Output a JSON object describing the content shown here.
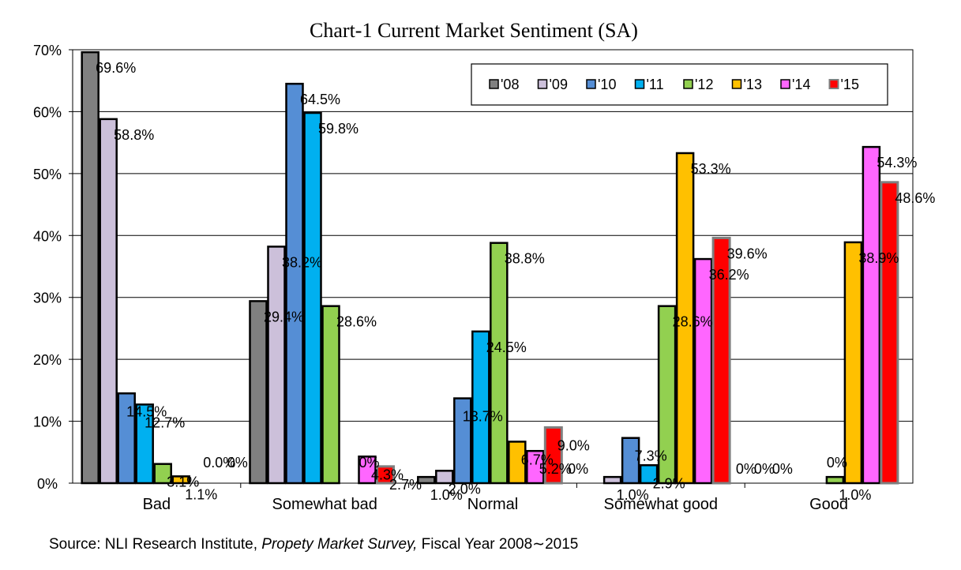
{
  "chart_data": {
    "type": "bar",
    "title": "Chart-1 Current Market Sentiment (SA)",
    "xlabel": "",
    "ylabel": "",
    "ylim": [
      0,
      70
    ],
    "yticks": [
      "0%",
      "10%",
      "20%",
      "30%",
      "40%",
      "50%",
      "60%",
      "70%"
    ],
    "grid": true,
    "legend_position": "top-right",
    "categories": [
      "Bad",
      "Somewhat bad",
      "Normal",
      "Somewhat good",
      "Good"
    ],
    "series": [
      {
        "name": "'08",
        "color": "#808080",
        "values": [
          69.6,
          29.4,
          1.0,
          0,
          0
        ],
        "labels": [
          "69.6%",
          "29.4%",
          "1.0%",
          "0%",
          "0%"
        ]
      },
      {
        "name": "'09",
        "color": "#ccc0da",
        "values": [
          58.8,
          38.2,
          2.0,
          1.0,
          0
        ],
        "labels": [
          "58.8%",
          "38.2%",
          "2.0%",
          "1.0%",
          "0%"
        ]
      },
      {
        "name": "'10",
        "color": "#558ed5",
        "values": [
          14.5,
          64.5,
          13.7,
          7.3,
          0
        ],
        "labels": [
          "14.5%",
          "64.5%",
          "13.7%",
          "7.3%",
          "0%"
        ]
      },
      {
        "name": "'11",
        "color": "#00b0f0",
        "values": [
          12.7,
          59.8,
          24.5,
          2.9,
          0
        ],
        "labels": [
          "12.7%",
          "59.8%",
          "24.5%",
          "2.9%",
          "0%"
        ]
      },
      {
        "name": "'12",
        "color": "#92d050",
        "values": [
          3.1,
          28.6,
          38.8,
          28.6,
          1.0
        ],
        "labels": [
          "3.1%",
          "28.6%",
          "38.8%",
          "28.6%",
          "1.0%"
        ]
      },
      {
        "name": "'13",
        "color": "#ffc000",
        "values": [
          1.1,
          0,
          6.7,
          53.3,
          38.9
        ],
        "labels": [
          "1.1%",
          "0%",
          "6.7%",
          "53.3%",
          "38.9%"
        ]
      },
      {
        "name": "'14",
        "color": "#ff66ff",
        "values": [
          0.0,
          4.3,
          5.2,
          36.2,
          54.3
        ],
        "labels": [
          "0.0%",
          "4.3%",
          "5.2%",
          "36.2%",
          "54.3%"
        ]
      },
      {
        "name": "'15",
        "color": "#ff0000",
        "values": [
          0,
          2.7,
          9.0,
          39.6,
          48.6
        ],
        "labels": [
          "0%",
          "2.7%",
          "9.0%",
          "39.6%",
          "48.6%"
        ]
      }
    ]
  },
  "source": {
    "prefix": "Source: NLI Research Institute, ",
    "italic": "Propety Market Survey,",
    "suffix": " Fiscal Year 2008∼2015"
  }
}
